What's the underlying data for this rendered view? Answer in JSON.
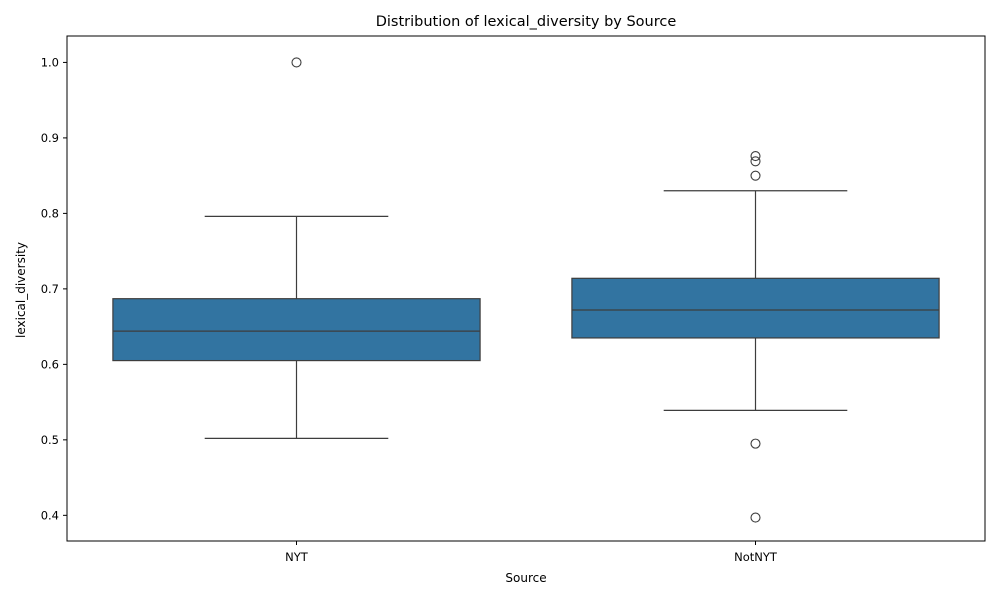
{
  "chart_data": {
    "type": "box",
    "title": "Distribution of lexical_diversity by Source",
    "xlabel": "Source",
    "ylabel": "lexical_diversity",
    "ylim": [
      0.366,
      1.035
    ],
    "yticks": [
      0.4,
      0.5,
      0.6,
      0.7,
      0.8,
      0.9,
      1.0
    ],
    "ytick_labels": [
      "0.4",
      "0.5",
      "0.6",
      "0.7",
      "0.8",
      "0.9",
      "1.0"
    ],
    "categories": [
      "NYT",
      "NotNYT"
    ],
    "box_color": "#3274a1",
    "line_color": "#3d3d3d",
    "grid": false,
    "boxes": [
      {
        "category": "NYT",
        "whisker_low": 0.502,
        "q1": 0.605,
        "median": 0.644,
        "q3": 0.687,
        "whisker_high": 0.796,
        "outliers": [
          1.0
        ]
      },
      {
        "category": "NotNYT",
        "whisker_low": 0.539,
        "q1": 0.635,
        "median": 0.672,
        "q3": 0.714,
        "whisker_high": 0.83,
        "outliers": [
          0.876,
          0.869,
          0.85,
          0.495,
          0.397
        ]
      }
    ]
  }
}
